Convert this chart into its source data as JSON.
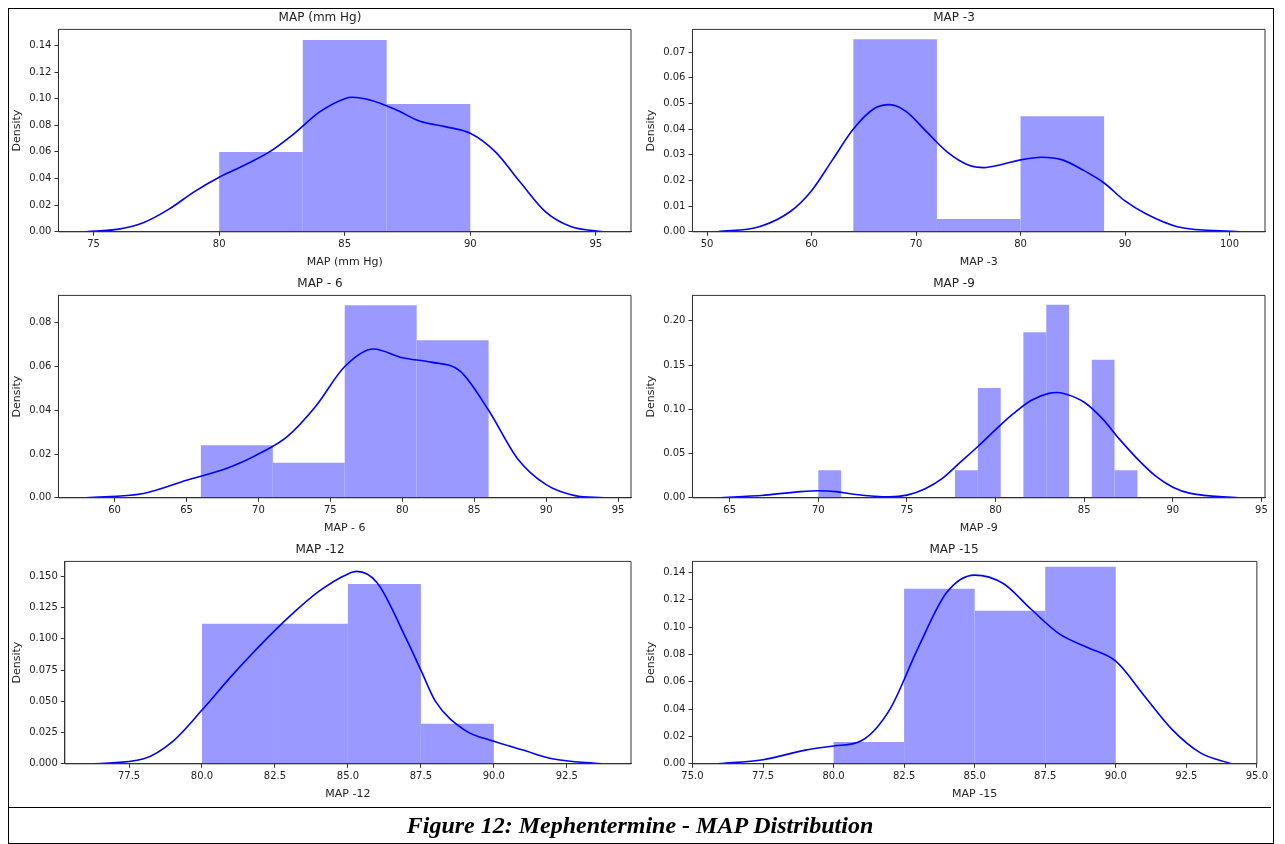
{
  "chart_data": [
    {
      "type": "histogram",
      "title": "MAP (mm Hg)",
      "xlabel": "MAP (mm Hg)",
      "ylabel": "Density",
      "xlim": [
        73.6,
        96.4
      ],
      "xticks": [
        75,
        80,
        85,
        90,
        95
      ],
      "ylim": [
        0,
        0.152
      ],
      "yticks": [
        {
          "value": 0,
          "label": "0.00"
        },
        {
          "value": 0.02,
          "label": "0.02"
        },
        {
          "value": 0.04,
          "label": "0.04"
        },
        {
          "value": 0.06,
          "label": "0.06"
        },
        {
          "value": 0.08,
          "label": "0.08"
        },
        {
          "value": 0.1,
          "label": "0.10"
        },
        {
          "value": 0.12,
          "label": "0.12"
        },
        {
          "value": 0.14,
          "label": "0.14"
        }
      ],
      "series": [
        {
          "type": "histogram",
          "color": "#9999ff",
          "bins": [
            80,
            83.33,
            86.67,
            90
          ],
          "values": [
            0.06,
            0.144,
            0.096
          ]
        },
        {
          "type": "line",
          "color": "#0000ff",
          "x": [
            74.7,
            76,
            77,
            78,
            79,
            80,
            81,
            82,
            83,
            84,
            85,
            85.3,
            86,
            87,
            88,
            89,
            90,
            91,
            92,
            93,
            94,
            95.3
          ],
          "values": [
            0,
            0.002,
            0.007,
            0.017,
            0.03,
            0.041,
            0.05,
            0.06,
            0.074,
            0.09,
            0.1,
            0.101,
            0.099,
            0.092,
            0.083,
            0.079,
            0.074,
            0.06,
            0.037,
            0.015,
            0.004,
            0
          ]
        }
      ]
    },
    {
      "type": "histogram",
      "title": "MAP -3",
      "xlabel": "MAP -3",
      "ylabel": "Density",
      "xlim": [
        48.6,
        103.4
      ],
      "xticks": [
        50,
        60,
        70,
        80,
        90,
        100
      ],
      "ylim": [
        0,
        0.0788
      ],
      "yticks": [
        {
          "value": 0,
          "label": "0.00"
        },
        {
          "value": 0.01,
          "label": "0.01"
        },
        {
          "value": 0.02,
          "label": "0.02"
        },
        {
          "value": 0.03,
          "label": "0.03"
        },
        {
          "value": 0.04,
          "label": "0.04"
        },
        {
          "value": 0.05,
          "label": "0.05"
        },
        {
          "value": 0.06,
          "label": "0.06"
        },
        {
          "value": 0.07,
          "label": "0.07"
        }
      ],
      "series": [
        {
          "type": "histogram",
          "color": "#9999ff",
          "bins": [
            64,
            72,
            80,
            88
          ],
          "values": [
            0.075,
            0.005,
            0.045
          ]
        },
        {
          "type": "line",
          "color": "#0000ff",
          "x": [
            51,
            55,
            58,
            60,
            62,
            64,
            66,
            67.5,
            69,
            71,
            73,
            75,
            76.5,
            78,
            80,
            82,
            84,
            86,
            88,
            90,
            92,
            95,
            101
          ],
          "values": [
            0,
            0.002,
            0.008,
            0.016,
            0.028,
            0.04,
            0.048,
            0.0495,
            0.047,
            0.039,
            0.031,
            0.026,
            0.025,
            0.026,
            0.028,
            0.029,
            0.028,
            0.024,
            0.019,
            0.012,
            0.007,
            0.002,
            0
          ]
        }
      ]
    },
    {
      "type": "histogram",
      "title": "MAP - 6",
      "xlabel": "MAP - 6",
      "ylabel": "Density",
      "xlim": [
        56.1,
        95.9
      ],
      "xticks": [
        60,
        65,
        70,
        75,
        80,
        85,
        90,
        95
      ],
      "ylim": [
        0,
        0.0925
      ],
      "yticks": [
        {
          "value": 0,
          "label": "0.00"
        },
        {
          "value": 0.02,
          "label": "0.02"
        },
        {
          "value": 0.04,
          "label": "0.04"
        },
        {
          "value": 0.06,
          "label": "0.06"
        },
        {
          "value": 0.08,
          "label": "0.08"
        }
      ],
      "series": [
        {
          "type": "histogram",
          "color": "#9999ff",
          "bins": [
            66,
            71,
            76,
            81,
            86
          ],
          "values": [
            0.024,
            0.016,
            0.088,
            0.072
          ]
        },
        {
          "type": "line",
          "color": "#0000ff",
          "x": [
            58,
            62,
            65,
            68,
            70,
            72,
            74,
            76,
            78,
            80,
            82,
            84,
            86,
            88,
            90,
            92,
            94
          ],
          "values": [
            0,
            0.002,
            0.008,
            0.014,
            0.02,
            0.028,
            0.042,
            0.06,
            0.068,
            0.064,
            0.062,
            0.058,
            0.04,
            0.018,
            0.006,
            0.001,
            0
          ]
        }
      ]
    },
    {
      "type": "histogram",
      "title": "MAP -9",
      "xlabel": "MAP -9",
      "ylabel": "Density",
      "xlim": [
        62.9,
        95.2
      ],
      "xticks": [
        65,
        70,
        75,
        80,
        85,
        90,
        95
      ],
      "ylim": [
        0,
        0.2287
      ],
      "yticks": [
        {
          "value": 0,
          "label": "0.00"
        },
        {
          "value": 0.05,
          "label": "0.05"
        },
        {
          "value": 0.1,
          "label": "0.10"
        },
        {
          "value": 0.15,
          "label": "0.15"
        },
        {
          "value": 0.2,
          "label": "0.20"
        }
      ],
      "series": [
        {
          "type": "histogram",
          "color": "#9999ff",
          "bins": [
            70,
            71.29,
            72.57,
            73.86,
            75.14,
            76.43,
            77.71,
            79,
            80.29,
            81.57,
            82.86,
            84.14,
            85.43,
            86.71,
            88
          ],
          "values": [
            0.031,
            0,
            0,
            0,
            0,
            0,
            0.031,
            0.124,
            0,
            0.187,
            0.218,
            0,
            0.156,
            0.031
          ]
        },
        {
          "type": "line",
          "color": "#0000ff",
          "x": [
            64.3,
            67,
            69,
            70,
            71,
            72,
            74,
            75,
            76,
            77,
            78,
            79,
            80,
            81,
            82,
            83,
            83.5,
            84,
            85,
            86,
            87,
            88,
            89,
            90,
            91,
            93.7
          ],
          "values": [
            0,
            0.003,
            0.007,
            0.008,
            0.007,
            0.004,
            0.001,
            0.003,
            0.01,
            0.022,
            0.04,
            0.058,
            0.077,
            0.095,
            0.11,
            0.118,
            0.119,
            0.117,
            0.108,
            0.09,
            0.066,
            0.044,
            0.025,
            0.012,
            0.005,
            0
          ]
        }
      ]
    },
    {
      "type": "histogram",
      "title": "MAP -12",
      "xlabel": "MAP -12",
      "ylabel": "Density",
      "xlim": [
        75.3,
        94.7
      ],
      "xticks": [
        77.5,
        {
          "value": 80,
          "label": "80.0"
        },
        82.5,
        {
          "value": 85,
          "label": "85.0"
        },
        87.5,
        {
          "value": 90,
          "label": "90.0"
        },
        92.5
      ],
      "ylim": [
        0,
        0.162
      ],
      "yticks": [
        {
          "value": 0,
          "label": "0.000"
        },
        {
          "value": 0.025,
          "label": "0.025"
        },
        {
          "value": 0.05,
          "label": "0.050"
        },
        {
          "value": 0.075,
          "label": "0.075"
        },
        {
          "value": 0.1,
          "label": "0.100"
        },
        {
          "value": 0.125,
          "label": "0.125"
        },
        {
          "value": 0.15,
          "label": "0.150"
        }
      ],
      "series": [
        {
          "type": "histogram",
          "color": "#9999ff",
          "bins": [
            80,
            82.5,
            85,
            87.5,
            90
          ],
          "values": [
            0.112,
            0.112,
            0.144,
            0.032
          ]
        },
        {
          "type": "line",
          "color": "#0000ff",
          "x": [
            76.3,
            78,
            79,
            80,
            81,
            82,
            83,
            84,
            85,
            85.3,
            86,
            87,
            87.5,
            88,
            89,
            90,
            91,
            92,
            93.7
          ],
          "values": [
            0,
            0.004,
            0.018,
            0.043,
            0.07,
            0.095,
            0.118,
            0.138,
            0.152,
            0.154,
            0.145,
            0.1,
            0.075,
            0.05,
            0.027,
            0.018,
            0.011,
            0.004,
            0
          ]
        }
      ]
    },
    {
      "type": "histogram",
      "title": "MAP -15",
      "xlabel": "MAP -15",
      "ylabel": "Density",
      "xlim": [
        75,
        95
      ],
      "xticks": [
        {
          "value": 75,
          "label": "75.0"
        },
        77.5,
        {
          "value": 80,
          "label": "80.0"
        },
        82.5,
        {
          "value": 85,
          "label": "85.0"
        },
        87.5,
        {
          "value": 90,
          "label": "90.0"
        },
        92.5,
        {
          "value": 95,
          "label": "95.0"
        }
      ],
      "ylim": [
        0,
        0.148
      ],
      "yticks": [
        {
          "value": 0,
          "label": "0.00"
        },
        {
          "value": 0.02,
          "label": "0.02"
        },
        {
          "value": 0.04,
          "label": "0.04"
        },
        {
          "value": 0.06,
          "label": "0.06"
        },
        {
          "value": 0.08,
          "label": "0.08"
        },
        {
          "value": 0.1,
          "label": "0.10"
        },
        {
          "value": 0.12,
          "label": "0.12"
        },
        {
          "value": 0.14,
          "label": "0.14"
        }
      ],
      "series": [
        {
          "type": "histogram",
          "color": "#9999ff",
          "bins": [
            80,
            82.5,
            85,
            87.5,
            90
          ],
          "values": [
            0.016,
            0.128,
            0.112,
            0.144
          ]
        },
        {
          "type": "line",
          "color": "#0000ff",
          "x": [
            75.9,
            77.5,
            79,
            80,
            81,
            82,
            83,
            84,
            85,
            86,
            87,
            88,
            89,
            90,
            91,
            92,
            93,
            94.1
          ],
          "values": [
            0,
            0.003,
            0.01,
            0.013,
            0.017,
            0.04,
            0.085,
            0.125,
            0.138,
            0.132,
            0.113,
            0.095,
            0.085,
            0.075,
            0.05,
            0.025,
            0.008,
            0
          ]
        }
      ]
    },
    {
      "type": "other",
      "title": "Figure 12: Mephentermine - MAP Distribution"
    }
  ]
}
